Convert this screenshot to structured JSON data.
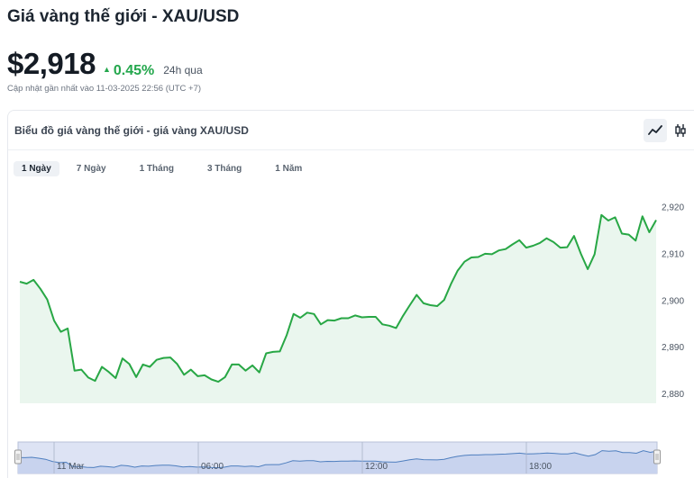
{
  "header": {
    "title": "Giá vàng thế giới - XAU/USD",
    "price": "$2,918",
    "change": "0.45%",
    "change_period": "24h qua",
    "updated": "Cập nhật gần nhất vào 11-03-2025 22:56 (UTC +7)"
  },
  "card": {
    "title": "Biểu đồ giá vàng thế giới - giá vàng XAU/USD",
    "tabs": [
      {
        "label": "1 Ngày",
        "active": true
      },
      {
        "label": "7 Ngày",
        "active": false
      },
      {
        "label": "1 Tháng",
        "active": false
      },
      {
        "label": "3 Tháng",
        "active": false
      },
      {
        "label": "1 Năm",
        "active": false
      }
    ],
    "tools": [
      {
        "icon": "line-chart-icon",
        "active": true
      },
      {
        "icon": "candlestick-icon",
        "active": false
      }
    ]
  },
  "colors": {
    "line": "#28a745",
    "area": "#eaf6ee",
    "up": "#24a74d",
    "navigator_fill": "#dde3f4",
    "navigator_line": "#4f7fbf"
  },
  "chart_data": {
    "type": "area",
    "ylim": [
      2878,
      2925
    ],
    "yticks": [
      2880,
      2890,
      2900,
      2910,
      2920
    ],
    "ytick_labels": [
      "2,880",
      "2,890",
      "2,900",
      "2,910",
      "2,920"
    ],
    "grid": false,
    "values": [
      2904,
      2903.6,
      2904.4,
      2902.5,
      2900.2,
      2895.7,
      2893.3,
      2894,
      2885,
      2885.2,
      2883.5,
      2882.8,
      2885.8,
      2884.7,
      2883.4,
      2887.6,
      2886.4,
      2883.6,
      2886.3,
      2885.8,
      2887.3,
      2887.7,
      2887.8,
      2886.4,
      2884.1,
      2885.2,
      2883.8,
      2884,
      2883.1,
      2882.6,
      2883.6,
      2886.3,
      2886.3,
      2885,
      2886.1,
      2884.6,
      2888.7,
      2889,
      2889.1,
      2892.6,
      2897.1,
      2896.3,
      2897.4,
      2897.1,
      2894.9,
      2895.8,
      2895.7,
      2896.2,
      2896.2,
      2896.8,
      2896.4,
      2896.5,
      2896.5,
      2894.9,
      2894.6,
      2894.1,
      2896.7,
      2899,
      2901.2,
      2899.4,
      2899,
      2898.8,
      2900.1,
      2903.5,
      2906.4,
      2908.3,
      2909.2,
      2909.3,
      2910,
      2909.9,
      2910.7,
      2911,
      2912,
      2912.9,
      2911.3,
      2911.7,
      2912.3,
      2913.3,
      2912.5,
      2911.3,
      2911.4,
      2913.8,
      2910,
      2906.7,
      2909.9,
      2918.3,
      2917.1,
      2917.8,
      2914.3,
      2914.1,
      2912.8,
      2918,
      2914.6,
      2917.2
    ],
    "navigator": {
      "tick_labels": [
        "11 Mar",
        "06:00",
        "12:00",
        "18:00"
      ]
    }
  }
}
